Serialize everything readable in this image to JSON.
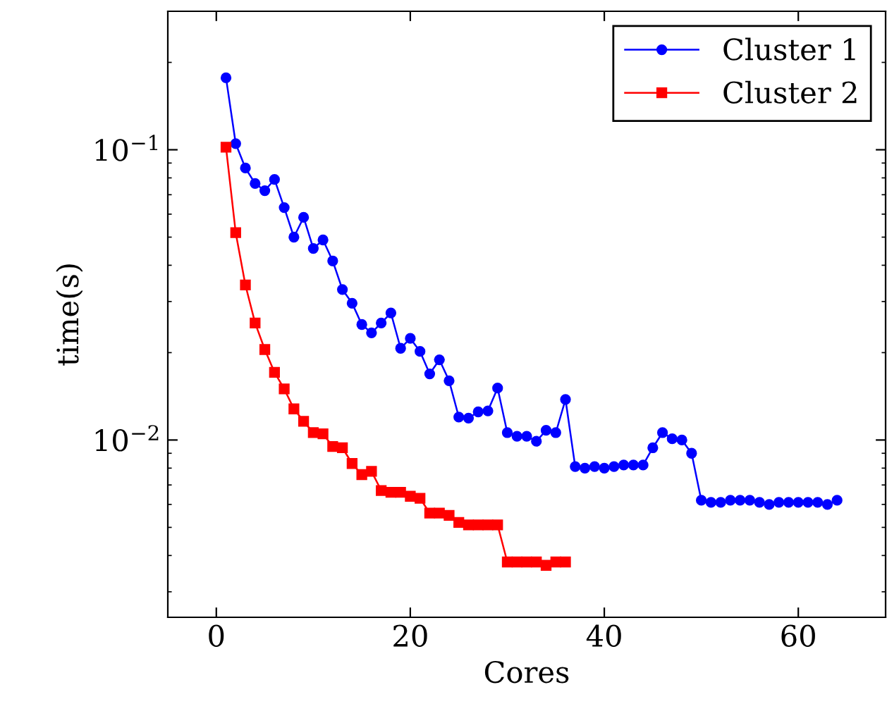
{
  "chart_data": {
    "type": "line",
    "xlabel": "Cores",
    "ylabel": "time(s)",
    "log": "y",
    "grid": false,
    "legend": "top right",
    "line_style": "solid",
    "xlim": [
      -5,
      69
    ],
    "xticks": [
      0,
      20,
      40,
      60
    ],
    "ylim": [
      0.00245,
      0.3
    ],
    "yticks": [
      {
        "value": 0.01,
        "label": "10$^{−2}$"
      },
      {
        "value": 0.1,
        "label": "10$^{−1}$"
      }
    ],
    "series": [
      {
        "name": "Cluster 1",
        "color": "#0000ff",
        "marker": "circle",
        "x": [
          1,
          2,
          3,
          4,
          5,
          6,
          7,
          8,
          9,
          10,
          11,
          12,
          13,
          14,
          15,
          16,
          17,
          18,
          19,
          20,
          21,
          22,
          23,
          24,
          25,
          26,
          27,
          28,
          29,
          30,
          31,
          32,
          33,
          34,
          35,
          36,
          37,
          38,
          39,
          40,
          41,
          42,
          43,
          44,
          45,
          46,
          47,
          48,
          49,
          50,
          51,
          52,
          53,
          54,
          55,
          56,
          57,
          58,
          59,
          60,
          61,
          62,
          63,
          64
        ],
        "values": [
          0.177,
          0.105,
          0.0865,
          0.0765,
          0.0723,
          0.079,
          0.0632,
          0.05,
          0.0585,
          0.0457,
          0.0489,
          0.0414,
          0.033,
          0.0296,
          0.025,
          0.0234,
          0.0253,
          0.0274,
          0.0207,
          0.0224,
          0.0202,
          0.0169,
          0.0189,
          0.016,
          0.012,
          0.0119,
          0.0125,
          0.0126,
          0.0151,
          0.0106,
          0.0103,
          0.0103,
          0.0099,
          0.0108,
          0.0106,
          0.0138,
          0.0081,
          0.008,
          0.0081,
          0.008,
          0.0081,
          0.0082,
          0.0082,
          0.0082,
          0.0094,
          0.0106,
          0.0101,
          0.01,
          0.009,
          0.0062,
          0.0061,
          0.0061,
          0.0062,
          0.0062,
          0.0062,
          0.0061,
          0.006,
          0.0061,
          0.0061,
          0.0061,
          0.0061,
          0.0061,
          0.006,
          0.0062
        ]
      },
      {
        "name": "Cluster 2",
        "color": "#ff0000",
        "marker": "square",
        "x": [
          1,
          2,
          3,
          4,
          5,
          6,
          7,
          8,
          9,
          10,
          11,
          12,
          13,
          14,
          15,
          16,
          17,
          18,
          19,
          20,
          21,
          22,
          23,
          24,
          25,
          26,
          27,
          28,
          29,
          30,
          31,
          32,
          33,
          34,
          35,
          36
        ],
        "values": [
          0.102,
          0.0518,
          0.0342,
          0.0253,
          0.0205,
          0.0171,
          0.015,
          0.0128,
          0.0116,
          0.0106,
          0.0105,
          0.0095,
          0.0094,
          0.0083,
          0.0076,
          0.0078,
          0.0067,
          0.0066,
          0.0066,
          0.0064,
          0.0063,
          0.0056,
          0.0056,
          0.0055,
          0.0052,
          0.0051,
          0.0051,
          0.0051,
          0.0051,
          0.0038,
          0.0038,
          0.0038,
          0.0038,
          0.0037,
          0.0038,
          0.0038
        ]
      }
    ]
  }
}
